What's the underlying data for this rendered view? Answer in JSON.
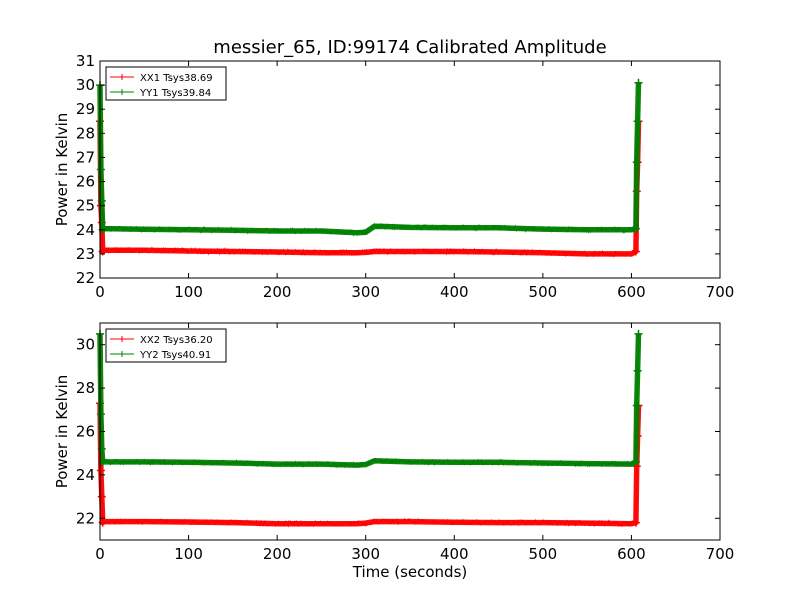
{
  "figure": {
    "title": "messier_65, ID:99174 Calibrated Amplitude"
  },
  "chart_data": [
    {
      "type": "line",
      "title": "messier_65, ID:99174 Calibrated Amplitude",
      "xlabel": "",
      "ylabel": "Power in Kelvin",
      "xlim": [
        0,
        700
      ],
      "ylim": [
        22,
        31
      ],
      "xticks": [
        0,
        100,
        200,
        300,
        400,
        500,
        600,
        700
      ],
      "yticks": [
        22,
        23,
        24,
        25,
        26,
        27,
        28,
        29,
        30,
        31
      ],
      "grid": false,
      "legend_position": "top-left",
      "series": [
        {
          "name": "XX1 Tsys38.69",
          "color": "#ff0000",
          "x": [
            0,
            1,
            2,
            3,
            5,
            50,
            100,
            150,
            200,
            250,
            290,
            300,
            310,
            350,
            400,
            450,
            500,
            550,
            600,
            605,
            606,
            607,
            608
          ],
          "y": [
            28.5,
            25.0,
            24.3,
            23.1,
            23.15,
            23.15,
            23.12,
            23.1,
            23.08,
            23.05,
            23.05,
            23.06,
            23.1,
            23.1,
            23.1,
            23.08,
            23.05,
            23.0,
            23.0,
            23.1,
            25.6,
            26.8,
            28.5
          ]
        },
        {
          "name": "YY1 Tsys39.84",
          "color": "#008000",
          "x": [
            0,
            1,
            2,
            3,
            5,
            50,
            100,
            150,
            200,
            250,
            290,
            300,
            310,
            350,
            400,
            450,
            500,
            550,
            600,
            605,
            606,
            607,
            608
          ],
          "y": [
            30.0,
            26.5,
            25.2,
            24.0,
            24.05,
            24.02,
            24.0,
            23.98,
            23.95,
            23.95,
            23.88,
            23.9,
            24.15,
            24.1,
            24.08,
            24.08,
            24.03,
            24.0,
            24.0,
            24.05,
            26.8,
            28.5,
            30.1
          ]
        }
      ]
    },
    {
      "type": "line",
      "title": "",
      "xlabel": "Time (seconds)",
      "ylabel": "Power in Kelvin",
      "xlim": [
        0,
        700
      ],
      "ylim": [
        21,
        31
      ],
      "xticks": [
        0,
        100,
        200,
        300,
        400,
        500,
        600,
        700
      ],
      "yticks": [
        22,
        24,
        26,
        28,
        30
      ],
      "grid": false,
      "legend_position": "top-left",
      "series": [
        {
          "name": "XX2 Tsys36.20",
          "color": "#ff0000",
          "x": [
            0,
            1,
            2,
            3,
            5,
            50,
            100,
            150,
            200,
            250,
            290,
            300,
            310,
            350,
            400,
            450,
            500,
            550,
            600,
            605,
            606,
            607,
            608
          ],
          "y": [
            27.3,
            24.2,
            23.0,
            21.8,
            21.85,
            21.85,
            21.83,
            21.8,
            21.75,
            21.75,
            21.75,
            21.78,
            21.85,
            21.85,
            21.82,
            21.8,
            21.8,
            21.78,
            21.75,
            21.8,
            24.4,
            25.8,
            27.2
          ]
        },
        {
          "name": "YY2 Tsys40.91",
          "color": "#008000",
          "x": [
            0,
            1,
            2,
            3,
            5,
            50,
            100,
            150,
            200,
            250,
            290,
            300,
            310,
            350,
            400,
            450,
            500,
            550,
            600,
            605,
            606,
            607,
            608
          ],
          "y": [
            30.5,
            26.8,
            25.2,
            24.6,
            24.6,
            24.6,
            24.58,
            24.55,
            24.5,
            24.5,
            24.45,
            24.48,
            24.65,
            24.6,
            24.58,
            24.58,
            24.55,
            24.52,
            24.5,
            24.6,
            27.2,
            28.8,
            30.5
          ]
        }
      ]
    }
  ]
}
